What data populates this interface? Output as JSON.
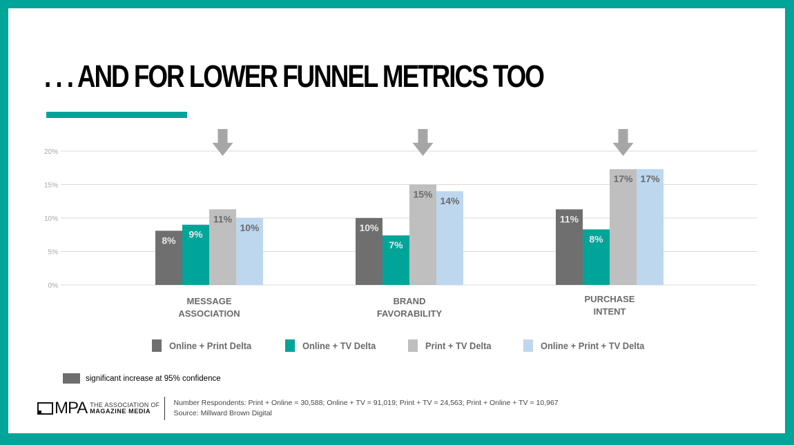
{
  "slide": {
    "title": ". . . AND FOR LOWER FUNNEL METRICS TOO",
    "note": "significant increase at 95% confidence",
    "footer": {
      "logo_text": "MPA",
      "logo_tag_top": "THE ASSOCIATION OF",
      "logo_tag_bottom": "MAGAZINE MEDIA",
      "respondents": "Number Respondents: Print + Online = 30,588; Online + TV = 91,019; Print + TV = 24,563; Print + Online + TV = 10,967",
      "source": "Source:  Millward Brown Digital"
    },
    "colors": {
      "frame": "#00A499",
      "accent": "#00A499"
    }
  },
  "chart_data": {
    "type": "bar",
    "title": "",
    "xlabel": "",
    "ylabel": "",
    "ylim": [
      0,
      20
    ],
    "yticks": [
      0,
      5,
      10,
      15,
      20
    ],
    "ytick_labels": [
      "0%",
      "5%",
      "10%",
      "15%",
      "20%"
    ],
    "grid": true,
    "legend_position": "bottom",
    "categories": [
      [
        "MESSAGE",
        "ASSOCIATION"
      ],
      [
        "BRAND",
        "FAVORABILITY"
      ],
      [
        "PURCHASE",
        "INTENT"
      ]
    ],
    "series": [
      {
        "name": "Online + Print Delta",
        "color": "#6f6f6f",
        "label_color": "#e8e8e8",
        "values": [
          8.1,
          10.0,
          11.3
        ],
        "labels": [
          "8%",
          "10%",
          "11%"
        ]
      },
      {
        "name": "Online + TV Delta",
        "color": "#00A499",
        "label_color": "#e8e8e8",
        "values": [
          9.0,
          7.4,
          8.3
        ],
        "labels": [
          "9%",
          "7%",
          "8%"
        ]
      },
      {
        "name": "Print + TV Delta",
        "color": "#bfbfbf",
        "label_color": "#6a6a6a",
        "values": [
          11.3,
          15.0,
          17.3
        ],
        "labels": [
          "11%",
          "15%",
          "17%"
        ]
      },
      {
        "name": "Online + Print + TV Delta",
        "color": "#bdd7ee",
        "label_color": "#6a6a6a",
        "values": [
          10.0,
          14.0,
          17.3
        ],
        "labels": [
          "10%",
          "14%",
          "17%"
        ]
      }
    ],
    "annotations": [
      {
        "type": "down-arrow",
        "category": "MESSAGE ASSOCIATION",
        "color": "#a6a6a6"
      },
      {
        "type": "down-arrow",
        "category": "BRAND FAVORABILITY",
        "color": "#a6a6a6"
      },
      {
        "type": "down-arrow",
        "category": "PURCHASE INTENT",
        "color": "#a6a6a6"
      }
    ]
  }
}
